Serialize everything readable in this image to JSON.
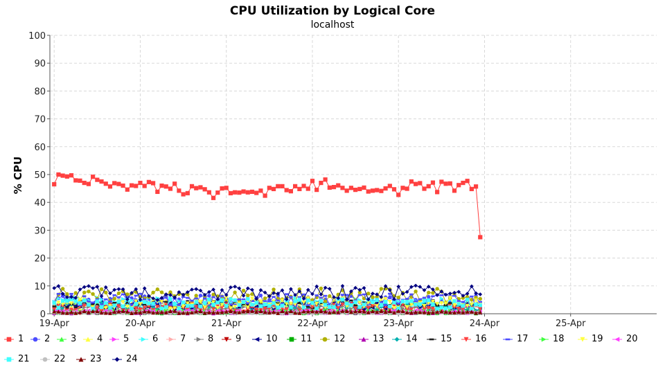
{
  "chart_data": {
    "type": "line",
    "title": "CPU Utilization by Logical Core",
    "subtitle": "localhost",
    "ylabel": "% CPU",
    "xlabel": "",
    "ylim": [
      0,
      100
    ],
    "yticks": [
      0,
      10,
      20,
      30,
      40,
      50,
      60,
      70,
      80,
      90,
      100
    ],
    "x_tick_labels": [
      "19-Apr",
      "20-Apr",
      "21-Apr",
      "22-Apr",
      "23-Apr",
      "24-Apr",
      "25-Apr"
    ],
    "x_range_days": [
      -0.05,
      7.0
    ],
    "grid": true,
    "legend": "bottom",
    "series": [
      {
        "name": "1",
        "color": "#ff4040",
        "marker": "square",
        "values": [
          [
            0.0,
            46.5
          ],
          [
            0.05,
            50.0
          ],
          [
            0.1,
            49.6
          ],
          [
            0.15,
            49.3
          ],
          [
            0.2,
            49.7
          ],
          [
            0.25,
            47.9
          ],
          [
            0.3,
            47.8
          ],
          [
            0.35,
            47.0
          ],
          [
            0.4,
            46.6
          ],
          [
            0.45,
            49.2
          ],
          [
            0.5,
            48.1
          ],
          [
            0.55,
            47.5
          ],
          [
            0.6,
            46.7
          ],
          [
            0.65,
            45.7
          ],
          [
            0.7,
            46.9
          ],
          [
            0.75,
            46.6
          ],
          [
            0.8,
            46.0
          ],
          [
            0.85,
            44.6
          ],
          [
            0.9,
            46.1
          ],
          [
            0.95,
            45.9
          ],
          [
            1.0,
            47.0
          ],
          [
            1.05,
            45.9
          ],
          [
            1.1,
            47.3
          ],
          [
            1.15,
            46.9
          ],
          [
            1.2,
            43.8
          ],
          [
            1.25,
            46.0
          ],
          [
            1.3,
            45.7
          ],
          [
            1.35,
            44.9
          ],
          [
            1.4,
            46.7
          ],
          [
            1.45,
            44.2
          ],
          [
            1.5,
            42.9
          ],
          [
            1.55,
            43.3
          ],
          [
            1.6,
            45.8
          ],
          [
            1.65,
            45.1
          ],
          [
            1.7,
            45.4
          ],
          [
            1.75,
            44.7
          ],
          [
            1.8,
            43.6
          ],
          [
            1.85,
            41.6
          ],
          [
            1.9,
            43.5
          ],
          [
            1.95,
            45.0
          ],
          [
            2.0,
            45.2
          ],
          [
            2.05,
            43.3
          ],
          [
            2.1,
            43.6
          ],
          [
            2.15,
            43.5
          ],
          [
            2.2,
            43.9
          ],
          [
            2.25,
            43.6
          ],
          [
            2.3,
            43.8
          ],
          [
            2.35,
            43.4
          ],
          [
            2.4,
            44.2
          ],
          [
            2.45,
            42.4
          ],
          [
            2.5,
            45.2
          ],
          [
            2.55,
            44.8
          ],
          [
            2.6,
            45.8
          ],
          [
            2.65,
            45.8
          ],
          [
            2.7,
            44.4
          ],
          [
            2.75,
            44.0
          ],
          [
            2.8,
            45.8
          ],
          [
            2.85,
            44.8
          ],
          [
            2.9,
            45.9
          ],
          [
            2.95,
            44.9
          ],
          [
            3.0,
            47.7
          ],
          [
            3.05,
            44.5
          ],
          [
            3.1,
            47.0
          ],
          [
            3.15,
            48.2
          ],
          [
            3.2,
            45.3
          ],
          [
            3.25,
            45.5
          ],
          [
            3.3,
            46.1
          ],
          [
            3.35,
            45.2
          ],
          [
            3.4,
            44.2
          ],
          [
            3.45,
            45.2
          ],
          [
            3.5,
            44.5
          ],
          [
            3.55,
            44.8
          ],
          [
            3.6,
            45.3
          ],
          [
            3.65,
            43.9
          ],
          [
            3.7,
            44.2
          ],
          [
            3.75,
            44.4
          ],
          [
            3.8,
            44.1
          ],
          [
            3.85,
            45.0
          ],
          [
            3.9,
            45.9
          ],
          [
            3.95,
            44.7
          ],
          [
            4.0,
            42.7
          ],
          [
            4.05,
            45.2
          ],
          [
            4.1,
            44.9
          ],
          [
            4.15,
            47.5
          ],
          [
            4.2,
            46.6
          ],
          [
            4.25,
            46.9
          ],
          [
            4.3,
            44.9
          ],
          [
            4.35,
            45.8
          ],
          [
            4.4,
            47.1
          ],
          [
            4.45,
            43.7
          ],
          [
            4.5,
            47.4
          ],
          [
            4.55,
            46.7
          ],
          [
            4.6,
            46.8
          ],
          [
            4.65,
            44.2
          ],
          [
            4.7,
            46.2
          ],
          [
            4.75,
            47.0
          ],
          [
            4.8,
            47.7
          ],
          [
            4.85,
            44.8
          ],
          [
            4.9,
            45.7
          ],
          [
            4.95,
            27.5
          ]
        ]
      },
      {
        "name": "2",
        "color": "#4c4cff",
        "marker": "circle",
        "values": []
      },
      {
        "name": "3",
        "color": "#40ff40",
        "marker": "triangle-up",
        "values": []
      },
      {
        "name": "4",
        "color": "#ffff40",
        "marker": "triangle-up",
        "values": []
      },
      {
        "name": "5",
        "color": "#ff40ff",
        "marker": "triangle-right",
        "values": []
      },
      {
        "name": "6",
        "color": "#40ffff",
        "marker": "triangle-right",
        "values": []
      },
      {
        "name": "7",
        "color": "#ffafaf",
        "marker": "triangle-right",
        "values": []
      },
      {
        "name": "8",
        "color": "#808080",
        "marker": "triangle-right",
        "values": []
      },
      {
        "name": "9",
        "color": "#c00000",
        "marker": "triangle-down",
        "values": []
      },
      {
        "name": "10",
        "color": "#00008c",
        "marker": "triangle-left",
        "values": []
      },
      {
        "name": "11",
        "color": "#00b000",
        "marker": "square",
        "values": []
      },
      {
        "name": "12",
        "color": "#b0b000",
        "marker": "circle",
        "values": []
      },
      {
        "name": "13",
        "color": "#b000b0",
        "marker": "triangle-up",
        "values": []
      },
      {
        "name": "14",
        "color": "#00b0b0",
        "marker": "diamond",
        "values": []
      },
      {
        "name": "15",
        "color": "#202020",
        "marker": "dash",
        "values": []
      },
      {
        "name": "16",
        "color": "#ff4040",
        "marker": "triangle-down",
        "values": []
      },
      {
        "name": "17",
        "color": "#4c4cff",
        "marker": "dash",
        "values": []
      },
      {
        "name": "18",
        "color": "#40ff40",
        "marker": "triangle-right",
        "values": []
      },
      {
        "name": "19",
        "color": "#ffff40",
        "marker": "triangle-down",
        "values": []
      },
      {
        "name": "20",
        "color": "#ff40ff",
        "marker": "triangle-left",
        "values": []
      },
      {
        "name": "21",
        "color": "#40ffff",
        "marker": "square",
        "values": []
      },
      {
        "name": "22",
        "color": "#c0c0c0",
        "marker": "circle",
        "values": []
      },
      {
        "name": "23",
        "color": "#800000",
        "marker": "triangle-up",
        "values": []
      },
      {
        "name": "24",
        "color": "#000080",
        "marker": "diamond",
        "values": []
      }
    ],
    "low_core_bands": [
      {
        "series": "2",
        "base": 4.5,
        "amp": 2.2
      },
      {
        "series": "3",
        "base": 1.2,
        "amp": 0.8
      },
      {
        "series": "4",
        "base": 3.0,
        "amp": 1.6
      },
      {
        "series": "5",
        "base": 0.8,
        "amp": 0.5
      },
      {
        "series": "6",
        "base": 4.0,
        "amp": 2.0
      },
      {
        "series": "7",
        "base": 1.0,
        "amp": 0.6
      },
      {
        "series": "8",
        "base": 2.0,
        "amp": 1.0
      },
      {
        "series": "9",
        "base": 0.6,
        "amp": 0.4
      },
      {
        "series": "10",
        "base": 3.0,
        "amp": 1.5
      },
      {
        "series": "11",
        "base": 0.4,
        "amp": 0.3
      },
      {
        "series": "12",
        "base": 6.5,
        "amp": 2.6
      },
      {
        "series": "13",
        "base": 0.5,
        "amp": 0.4
      },
      {
        "series": "14",
        "base": 2.5,
        "amp": 1.5
      },
      {
        "series": "15",
        "base": 3.5,
        "amp": 1.5
      },
      {
        "series": "16",
        "base": 2.2,
        "amp": 1.4
      },
      {
        "series": "17",
        "base": 5.0,
        "amp": 2.2
      },
      {
        "series": "18",
        "base": 0.7,
        "amp": 0.4
      },
      {
        "series": "19",
        "base": 3.8,
        "amp": 2.0
      },
      {
        "series": "20",
        "base": 0.8,
        "amp": 0.5
      },
      {
        "series": "21",
        "base": 3.5,
        "amp": 1.8
      },
      {
        "series": "22",
        "base": 0.3,
        "amp": 0.2
      },
      {
        "series": "23",
        "base": 0.6,
        "amp": 0.4
      },
      {
        "series": "24",
        "base": 7.5,
        "amp": 2.6
      }
    ]
  }
}
